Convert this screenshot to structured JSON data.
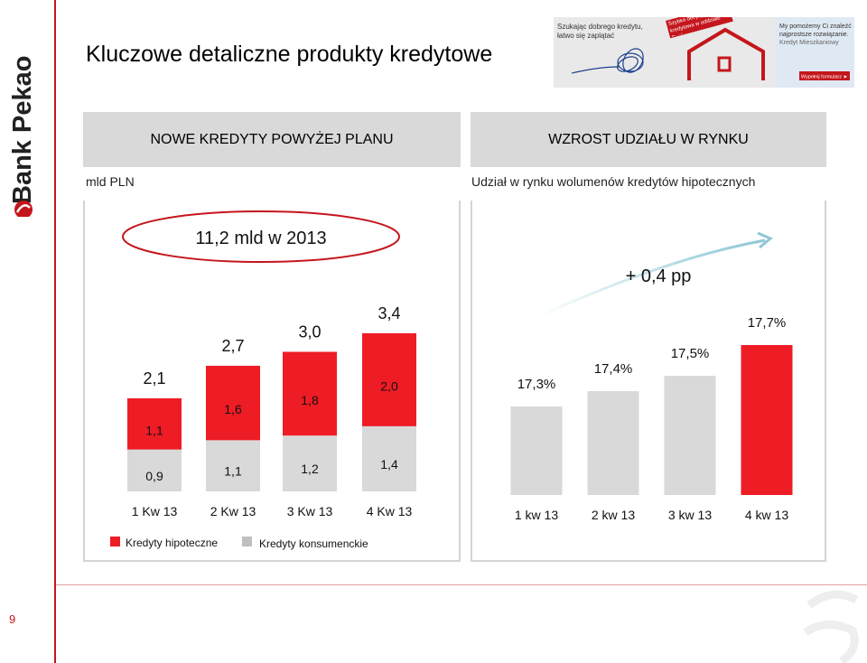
{
  "slide": {
    "title": "Kluczowe detaliczne produkty kredytowe",
    "page_number": "9",
    "brand": "Bank Pekao",
    "banner_left_text": "Szukając dobrego kredytu, łatwo się zaplątać",
    "banner_badge_text": "Szybka decyzja kredytowa w oddziale Banku",
    "banner_right_text": "My pomożemy Ci znaleźć najprostsze rozwiązanie.",
    "banner_product": "Kredyt Mieszkaniowy",
    "banner_button": "Wypełnij formularz ►"
  },
  "left_panel": {
    "header": "NOWE KREDYTY POWYŻEJ PLANU",
    "unit": "mld PLN",
    "callout": "11,2 mld w 2013"
  },
  "right_panel": {
    "header": "WZROST UDZIAŁU W RYNKU",
    "subtitle": "Udział w rynku wolumenów kredytów hipotecznych",
    "callout": "+ 0,4 pp"
  },
  "chart_data": [
    {
      "type": "bar",
      "stacked": true,
      "title": "NOWE KREDYTY POWYŻEJ PLANU",
      "unit": "mld PLN",
      "categories": [
        "1 Kw 13",
        "2 Kw 13",
        "3 Kw 13",
        "4 Kw 13"
      ],
      "series": [
        {
          "name": "Kredyty konsumenckie",
          "color": "#d9d9d9",
          "values": [
            0.9,
            1.1,
            1.2,
            1.4
          ],
          "labels": [
            "0,9",
            "1,1",
            "1,2",
            "1,4"
          ]
        },
        {
          "name": "Kredyty hipoteczne",
          "color": "#ee1c25",
          "values": [
            1.1,
            1.6,
            1.8,
            2.0
          ],
          "labels": [
            "1,1",
            "1,6",
            "1,8",
            "2,0"
          ]
        }
      ],
      "totals": [
        2.1,
        2.7,
        3.0,
        3.4
      ],
      "total_labels": [
        "2,1",
        "2,7",
        "3,0",
        "3,4"
      ],
      "annotation": "11,2 mld w 2013",
      "legend_position": "bottom-left"
    },
    {
      "type": "bar",
      "title": "WZROST UDZIAŁU W RYNKU",
      "subtitle": "Udział w rynku wolumenów kredytów hipotecznych",
      "categories": [
        "1 kw 13",
        "2 kw 13",
        "3 kw 13",
        "4 kw 13"
      ],
      "values": [
        17.3,
        17.4,
        17.5,
        17.7
      ],
      "labels": [
        "17,3%",
        "17,4%",
        "17,5%",
        "17,7%"
      ],
      "colors": [
        "#d9d9d9",
        "#d9d9d9",
        "#d9d9d9",
        "#ee1c25"
      ],
      "annotation": "+ 0,4 pp",
      "trend_arrow": true
    }
  ]
}
